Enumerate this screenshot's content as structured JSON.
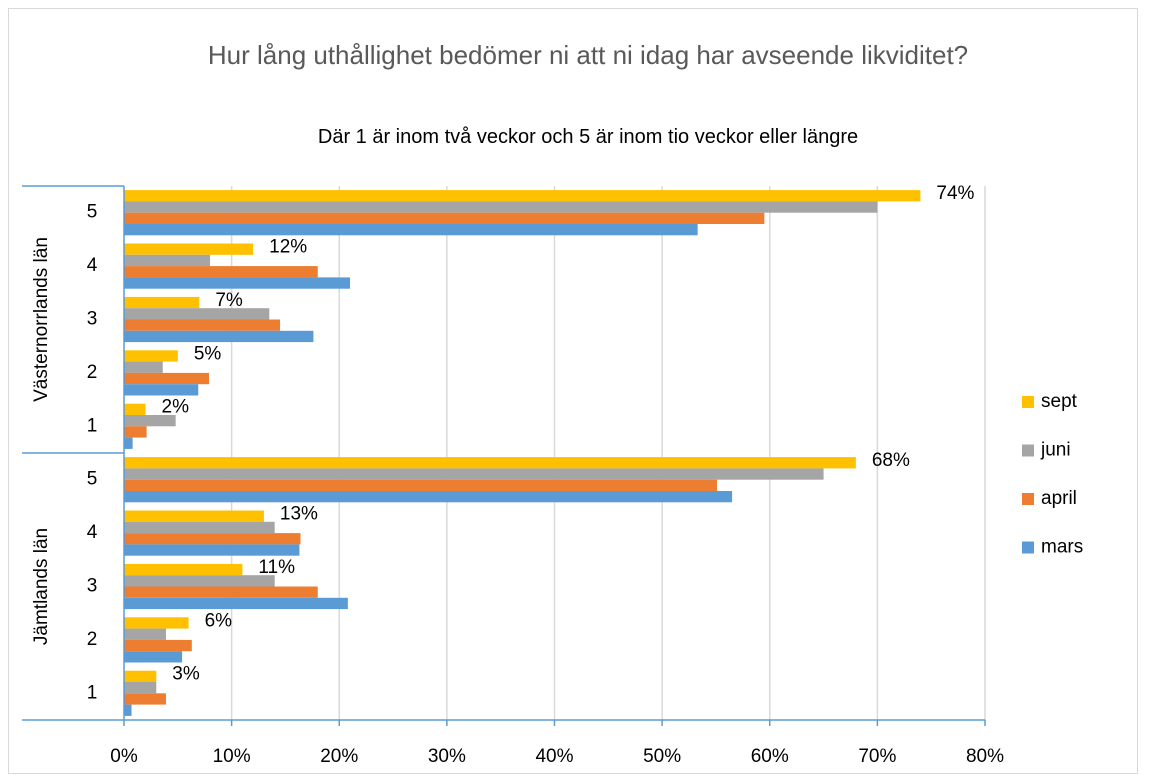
{
  "chart_data": {
    "type": "hbar-grouped",
    "title": "Hur lång uthållighet bedömer ni att ni idag har avseende likviditet?",
    "subtitle": "Där 1 är inom två veckor och 5 är inom tio veckor eller längre",
    "groups": [
      {
        "label": "Västernorrlands län",
        "categories": [
          "5",
          "4",
          "3",
          "2",
          "1"
        ]
      },
      {
        "label": "Jämtlands län",
        "categories": [
          "5",
          "4",
          "3",
          "2",
          "1"
        ]
      }
    ],
    "series": [
      {
        "name": "sept",
        "color": "#ffc000",
        "values": [
          [
            74,
            12,
            7,
            5,
            2
          ],
          [
            68,
            13,
            11,
            6,
            3
          ]
        ],
        "value_labels": [
          [
            "74%",
            "12%",
            "7%",
            "5%",
            "2%"
          ],
          [
            "68%",
            "13%",
            "11%",
            "6%",
            "3%"
          ]
        ]
      },
      {
        "name": "juni",
        "color": "#a5a5a5",
        "values": [
          [
            70,
            8,
            13.5,
            3.6,
            4.8
          ],
          [
            65,
            14,
            14,
            3.9,
            3
          ]
        ]
      },
      {
        "name": "april",
        "color": "#ed7d31",
        "values": [
          [
            59.5,
            18,
            14.5,
            7.9,
            2.1
          ],
          [
            55.1,
            16.4,
            18,
            6.3,
            3.9
          ]
        ]
      },
      {
        "name": "mars",
        "color": "#5b9bd5",
        "values": [
          [
            53.3,
            21,
            17.6,
            6.9,
            0.8
          ],
          [
            56.5,
            16.3,
            20.8,
            5.4,
            0.7
          ]
        ]
      }
    ],
    "xlim": [
      0,
      80
    ],
    "xticks": [
      {
        "value": 0,
        "label": "0%"
      },
      {
        "value": 10,
        "label": "10%"
      },
      {
        "value": 20,
        "label": "20%"
      },
      {
        "value": 30,
        "label": "30%"
      },
      {
        "value": 40,
        "label": "40%"
      },
      {
        "value": 50,
        "label": "50%"
      },
      {
        "value": 60,
        "label": "60%"
      },
      {
        "value": 70,
        "label": "70%"
      },
      {
        "value": 80,
        "label": "80%"
      }
    ],
    "grid": true,
    "legend": "right"
  }
}
